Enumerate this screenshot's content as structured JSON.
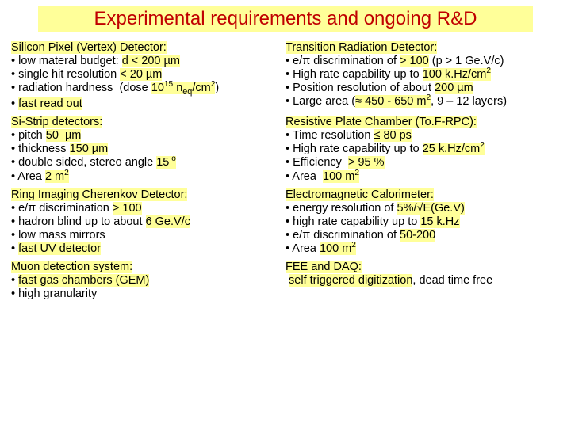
{
  "title": "Experimental requirements and ongoing R&D",
  "colors": {
    "highlight": "#ffff99",
    "title_text": "#c00000",
    "body_text": "#000000"
  },
  "fonts": {
    "title_family": "Comic Sans MS",
    "body_family": "Arial",
    "title_size": 24,
    "body_size": 14.5
  },
  "sections": {
    "silicon_pixel": {
      "header": "Silicon Pixel (Vertex) Detector:",
      "items": [
        "• low materal budget: d < 200 µm",
        "• single hit resolution < 20 µm",
        "• radiation hardness  (dose 10^15 n_eq/cm^2)",
        "• fast read out"
      ]
    },
    "trd": {
      "header": "Transition Radiation Detector:",
      "items": [
        "• e/π discrimination of > 100 (p > 1 Ge.V/c)",
        "• High rate capability up to 100 k.Hz/cm^2",
        "• Position resolution of about 200 µm",
        "• Large area (≈ 450 - 650 m^2, 9 – 12 layers)"
      ]
    },
    "si_strip": {
      "header": "Si-Strip detectors:",
      "items": [
        "• pitch 50  µm",
        "• thickness 150 µm",
        "• double sided, stereo angle 15^o",
        "• Area 2 m^2"
      ]
    },
    "rpc": {
      "header": "Resistive Plate Chamber (To.F-RPC):",
      "items": [
        "• Time resolution ≤ 80 ps",
        "• High rate capability up to 25 k.Hz/cm^2",
        "• Efficiency  > 95 %",
        "• Area  100 m^2"
      ]
    },
    "rich": {
      "header": "Ring Imaging Cherenkov Detector:",
      "items": [
        "• e/π discrimination > 100",
        "• hadron blind up to about 6 Ge.V/c",
        "• low mass mirrors",
        "• fast UV detector"
      ]
    },
    "ecal": {
      "header": "Electromagnetic Calorimeter:",
      "items": [
        "• energy resolution of 5%/√E(Ge.V)",
        "• high rate capability up to 15 k.Hz",
        "• e/π discrimination of 50-200",
        "• Area 100 m^2"
      ]
    },
    "muon": {
      "header": "Muon detection system:",
      "items": [
        "• fast gas chambers (GEM)",
        "• high granularity"
      ]
    },
    "fee": {
      "header": "FEE and DAQ:",
      "items": [
        " self triggered digitization, dead time free"
      ]
    }
  }
}
